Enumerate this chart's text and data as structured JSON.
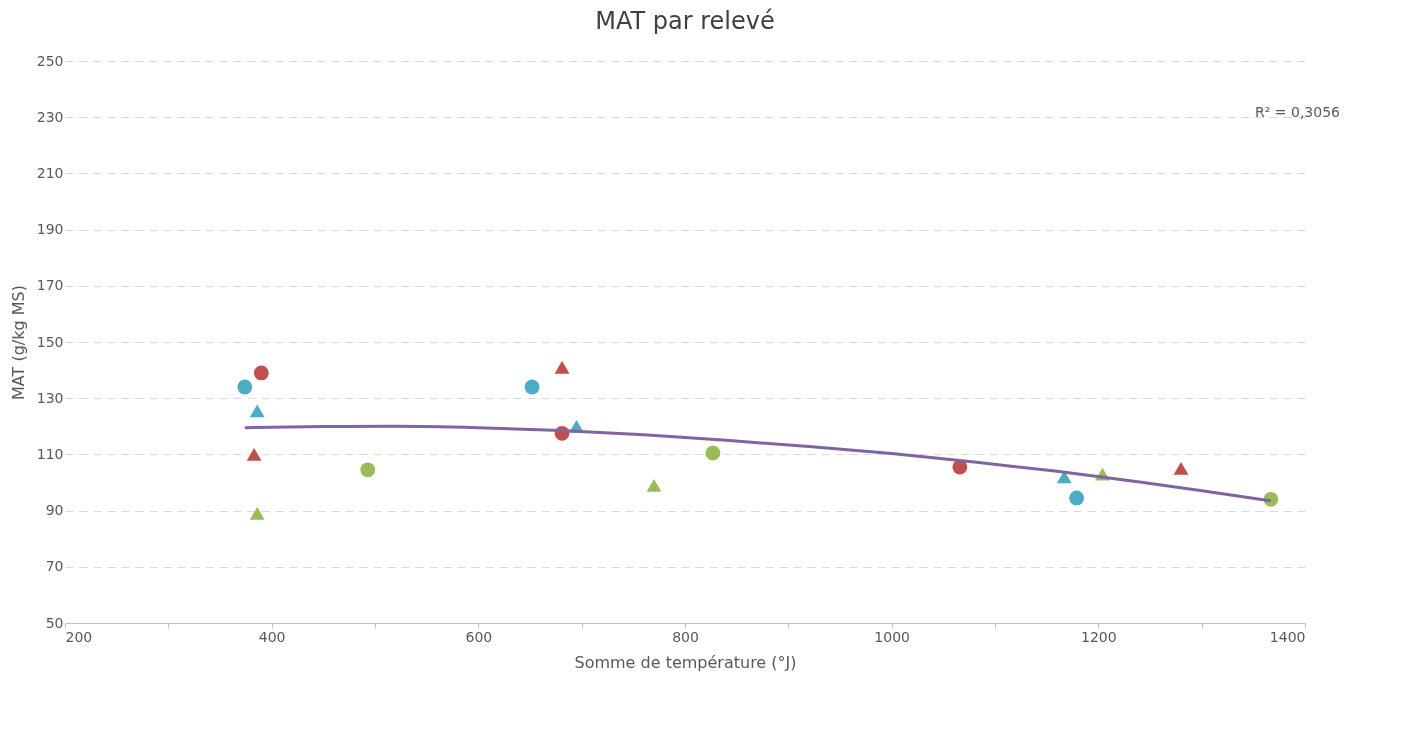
{
  "chart_data": {
    "type": "scatter",
    "title": "MAT par relevé",
    "xlabel": "Somme de température (°J)",
    "ylabel": "MAT (g/kg MS)",
    "xlim": [
      200,
      1400
    ],
    "ylim": [
      50,
      250
    ],
    "xticks": [
      200,
      {
        "value": 300,
        "label": null
      },
      400,
      {
        "value": 500,
        "label": null
      },
      600,
      {
        "value": 700,
        "label": null
      },
      800,
      {
        "value": 900,
        "label": null
      },
      1000,
      {
        "value": 1100,
        "label": null
      },
      1200,
      {
        "value": 1300,
        "label": null
      },
      1400
    ],
    "yticks": [
      50,
      70,
      90,
      110,
      130,
      150,
      170,
      190,
      210,
      230,
      250
    ],
    "grid": "y",
    "annotations": [
      "R² = 0,3056"
    ],
    "series": [
      {
        "color": "#4bacc6",
        "marker": "circle",
        "x": [
          374,
          652,
          1179
        ],
        "values": [
          134,
          134,
          94.5
        ]
      },
      {
        "color": "#c0504d",
        "marker": "circle",
        "x": [
          390,
          681,
          1066
        ],
        "values": [
          139,
          117.5,
          105.5
        ]
      },
      {
        "color": "#9bbb59",
        "marker": "circle",
        "x": [
          493,
          827,
          1367
        ],
        "values": [
          104.5,
          110.5,
          94
        ]
      },
      {
        "color": "#4bacc6",
        "marker": "triangle",
        "x": [
          386,
          695,
          1167
        ],
        "values": [
          125.5,
          120,
          102
        ]
      },
      {
        "color": "#c0504d",
        "marker": "triangle",
        "x": [
          383,
          681,
          1280
        ],
        "values": [
          110,
          141,
          105
        ]
      },
      {
        "color": "#9bbb59",
        "marker": "triangle",
        "x": [
          386,
          770,
          1204
        ],
        "values": [
          89,
          99,
          103
        ]
      },
      {
        "type": "line",
        "color": "#8064a2",
        "marker": "none",
        "line_style": "solid",
        "x": [
          374,
          450,
          520,
          600,
          680,
          760,
          840,
          920,
          1000,
          1080,
          1160,
          1240,
          1320,
          1367
        ],
        "values": [
          119.5,
          119.9,
          120,
          119.5,
          118.5,
          117,
          115,
          112.8,
          110.3,
          107.3,
          104,
          100.2,
          96,
          93.5
        ]
      }
    ]
  }
}
